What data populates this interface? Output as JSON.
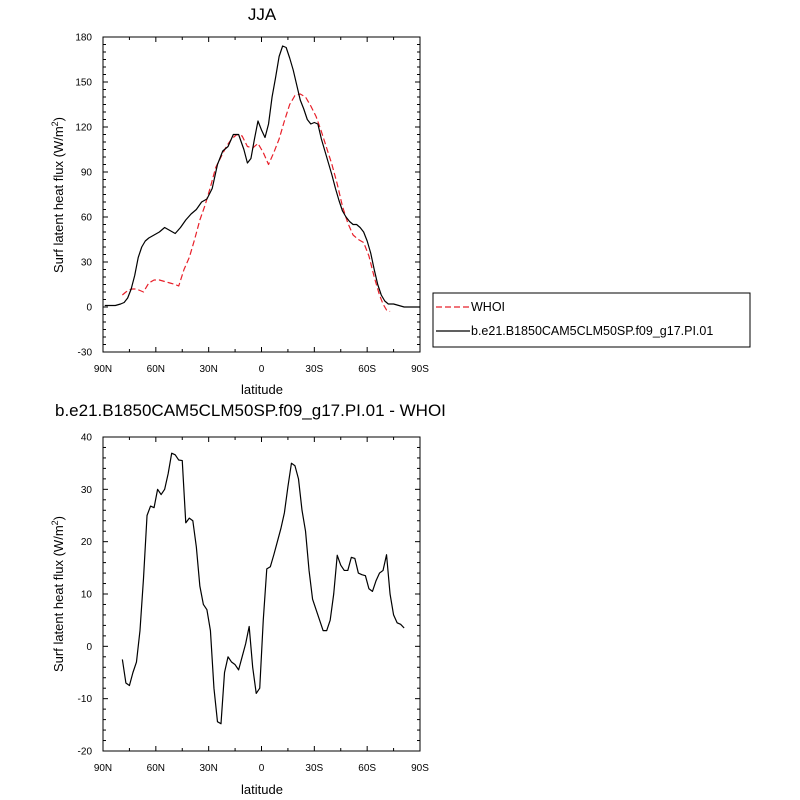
{
  "chart_data": [
    {
      "type": "line",
      "title": "JJA",
      "xlabel": "latitude",
      "ylabel": "Surf latent heat flux (W/m",
      "ylabel_sup": "2",
      "ylabel_end": ")",
      "xlim": [
        90,
        -90
      ],
      "ylim": [
        -30,
        180
      ],
      "xticks": [
        90,
        60,
        30,
        0,
        -30,
        -60,
        -90
      ],
      "xticklabels": [
        "90N",
        "60N",
        "30N",
        "0",
        "30S",
        "60S",
        "90S"
      ],
      "yticks": [
        -30,
        0,
        30,
        60,
        90,
        120,
        150,
        180
      ],
      "yticklabels": [
        "-30",
        "0",
        "30",
        "60",
        "90",
        "120",
        "150",
        "180"
      ],
      "legend": "right",
      "grid": false,
      "series": [
        {
          "name": "WHOI",
          "color": "#e8202a",
          "dash": "dashed",
          "x": [
            79,
            77,
            74,
            71,
            69,
            67,
            64,
            61,
            58,
            55,
            52,
            49,
            47,
            44,
            41,
            38,
            35,
            32,
            29,
            26,
            23,
            20,
            17,
            14,
            11,
            8,
            5,
            2,
            -1,
            -4,
            -7,
            -10,
            -13,
            -16,
            -19,
            -22,
            -25,
            -28,
            -31,
            -34,
            -37,
            -40,
            -43,
            -46,
            -49,
            -52,
            -55,
            -58,
            -61,
            -64,
            -67,
            -69,
            -71,
            -73
          ],
          "y": [
            8,
            10,
            12,
            12,
            11,
            10,
            16,
            18,
            18,
            17,
            16,
            15,
            14,
            25,
            33,
            45,
            58,
            68,
            80,
            93,
            100,
            107,
            112,
            115,
            114,
            107,
            106,
            109,
            103,
            95,
            103,
            112,
            124,
            135,
            141,
            142,
            140,
            134,
            127,
            117,
            106,
            95,
            82,
            67,
            56,
            48,
            45,
            43,
            34,
            20,
            8,
            2,
            -2,
            -3
          ]
        },
        {
          "name": "b.e21.B1850CAM5CLM50SP.f09_g17.PI.01",
          "color": "#000000",
          "dash": "solid",
          "x": [
            89,
            86,
            83,
            80,
            78,
            76,
            74,
            72,
            70,
            68,
            66,
            64,
            61,
            58,
            55,
            52,
            49,
            46,
            43,
            40,
            37,
            34,
            31,
            28,
            25,
            22,
            19,
            16,
            13,
            10,
            8,
            6,
            4,
            2,
            0,
            -2,
            -4,
            -6,
            -8,
            -10,
            -12,
            -14,
            -16,
            -18,
            -20,
            -22,
            -24,
            -26,
            -28,
            -30,
            -32,
            -34,
            -36,
            -38,
            -40,
            -42,
            -44,
            -46,
            -48,
            -50,
            -52,
            -54,
            -56,
            -58,
            -60,
            -62,
            -64,
            -66,
            -68,
            -70,
            -72,
            -75,
            -78,
            -81,
            -84,
            -87,
            -90
          ],
          "y": [
            1,
            1,
            1,
            2,
            3,
            6,
            12,
            21,
            33,
            40,
            44,
            46,
            48,
            50,
            53,
            51,
            49,
            53,
            58,
            62,
            65,
            70,
            72,
            79,
            95,
            104,
            107,
            115,
            115,
            105,
            96,
            99,
            112,
            124,
            118,
            113,
            122,
            140,
            153,
            167,
            174,
            173,
            166,
            158,
            148,
            138,
            132,
            125,
            122,
            123,
            122,
            112,
            104,
            96,
            88,
            79,
            71,
            64,
            60,
            57,
            55,
            55,
            53,
            50,
            44,
            36,
            25,
            15,
            8,
            4,
            2,
            2,
            1,
            0,
            0,
            0,
            0
          ]
        }
      ]
    },
    {
      "type": "line",
      "title": "b.e21.B1850CAM5CLM50SP.f09_g17.PI.01 - WHOI",
      "xlabel": "latitude",
      "ylabel": "Surf latent heat flux (W/m",
      "ylabel_sup": "2",
      "ylabel_end": ")",
      "xlim": [
        90,
        -90
      ],
      "ylim": [
        -20,
        40
      ],
      "xticks": [
        90,
        60,
        30,
        0,
        -30,
        -60,
        -90
      ],
      "xticklabels": [
        "90N",
        "60N",
        "30N",
        "0",
        "30S",
        "60S",
        "90S"
      ],
      "yticks": [
        -20,
        -10,
        0,
        10,
        20,
        30,
        40
      ],
      "yticklabels": [
        "-20",
        "-10",
        "0",
        "10",
        "20",
        "30",
        "40"
      ],
      "grid": false,
      "series": [
        {
          "color": "#000000",
          "dash": "solid",
          "x": [
            79,
            77,
            75,
            73,
            71,
            69,
            67,
            65,
            63,
            61,
            59,
            57,
            55,
            53,
            51,
            49,
            47,
            45,
            43,
            41,
            39,
            37,
            35,
            33,
            31,
            29,
            27,
            25,
            23,
            21,
            19,
            17,
            15,
            13,
            11,
            9,
            7,
            5,
            3,
            1,
            -1,
            -3,
            -5,
            -7,
            -9,
            -11,
            -13,
            -15,
            -17,
            -19,
            -21,
            -23,
            -25,
            -27,
            -29,
            -31,
            -33,
            -35,
            -37,
            -39,
            -41,
            -43,
            -45,
            -47,
            -49,
            -51,
            -53,
            -55,
            -57,
            -59,
            -61,
            -63,
            -65,
            -67,
            -69,
            -71,
            -73
          ],
          "y": [
            -2.5,
            -7,
            -7.5,
            -5,
            -3,
            3,
            13,
            25,
            26.8,
            26.5,
            30,
            29,
            30,
            33,
            36.9,
            36.6,
            35.6,
            35.5,
            23.6,
            24.5,
            24,
            19,
            11.5,
            8,
            7,
            3,
            -8,
            -14.4,
            -14.8,
            -5,
            -2,
            -3,
            -3.5,
            -4.5,
            -2,
            0.5,
            3.8,
            -4,
            -9,
            -8,
            5,
            14.8,
            15.2,
            17.5,
            20,
            22.5,
            25.5,
            30.5,
            35,
            34.5,
            32,
            26,
            22,
            14.5,
            9,
            7,
            5,
            3,
            3,
            5,
            10,
            17.4,
            15.5,
            14.5,
            14.5,
            17,
            16.8,
            14,
            13.7,
            13.5,
            11,
            10.5,
            12.5,
            14,
            14.5,
            17.5,
            10
          ],
          "tail_x": [
            -73,
            -75,
            -77,
            -79,
            -81
          ],
          "tail_y": [
            10,
            6,
            4.5,
            4.2,
            3.5
          ]
        }
      ]
    }
  ]
}
